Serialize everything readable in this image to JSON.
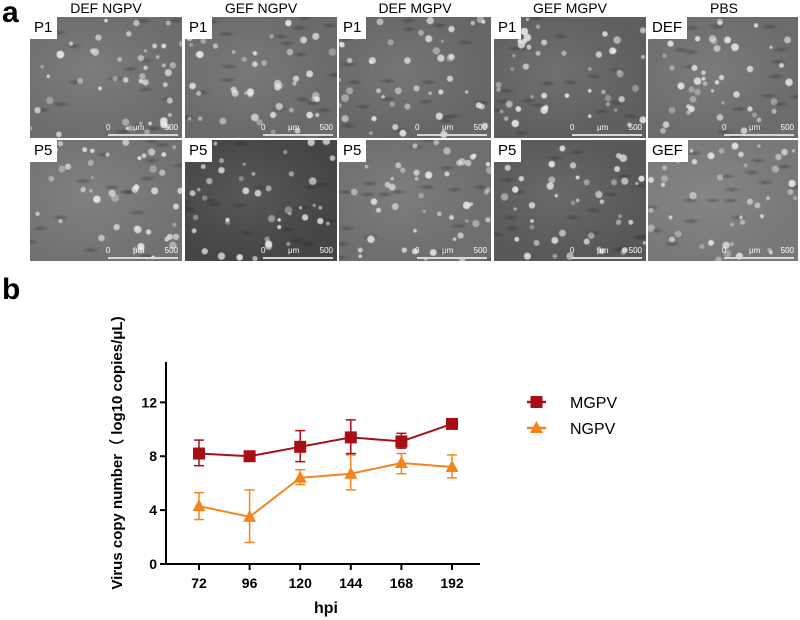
{
  "figure": {
    "panel_a": {
      "letter": "a",
      "columns": [
        {
          "title": "DEF NGPV",
          "top_tag": "P1",
          "bottom_tag": "P5"
        },
        {
          "title": "GEF NGPV",
          "top_tag": "P1",
          "bottom_tag": "P5"
        },
        {
          "title": "DEF MGPV",
          "top_tag": "P1",
          "bottom_tag": "P5"
        },
        {
          "title": "GEF MGPV",
          "top_tag": "P1",
          "bottom_tag": "P5"
        },
        {
          "title": "PBS",
          "top_tag": "DEF",
          "bottom_tag": "GEF"
        }
      ],
      "scale_bar": {
        "start": "0",
        "unit": "μm",
        "end": "500"
      }
    },
    "panel_b": {
      "letter": "b"
    }
  },
  "chart_data": {
    "type": "line",
    "title": "",
    "xlabel": "hpi",
    "ylabel": "Virus copy number（ log10 copies/μL)",
    "categories": [
      72,
      96,
      120,
      144,
      168,
      192
    ],
    "x_tick_labels": [
      "72",
      "96",
      "120",
      "144",
      "168",
      "192"
    ],
    "y_tick_labels": [
      "0",
      "4",
      "8",
      "12"
    ],
    "yticks": [
      0,
      4,
      8,
      12
    ],
    "ylim": [
      0,
      15
    ],
    "grid": false,
    "legend_position": "right",
    "error_bars": true,
    "series": [
      {
        "name": "MGPV",
        "color": "#a50f15",
        "marker": "square",
        "values": [
          8.2,
          8.0,
          8.7,
          9.4,
          9.1,
          10.4
        ],
        "err_low": [
          7.3,
          8.0,
          7.6,
          8.2,
          8.6,
          10.4
        ],
        "err_high": [
          9.2,
          8.0,
          9.9,
          10.7,
          9.7,
          10.4
        ]
      },
      {
        "name": "NGPV",
        "color": "#f5841f",
        "marker": "triangle",
        "values": [
          4.3,
          3.5,
          6.4,
          6.7,
          7.5,
          7.2
        ],
        "err_low": [
          3.3,
          1.6,
          5.9,
          5.5,
          6.7,
          6.4
        ],
        "err_high": [
          5.3,
          5.5,
          7.0,
          8.1,
          8.2,
          8.1
        ]
      }
    ]
  }
}
